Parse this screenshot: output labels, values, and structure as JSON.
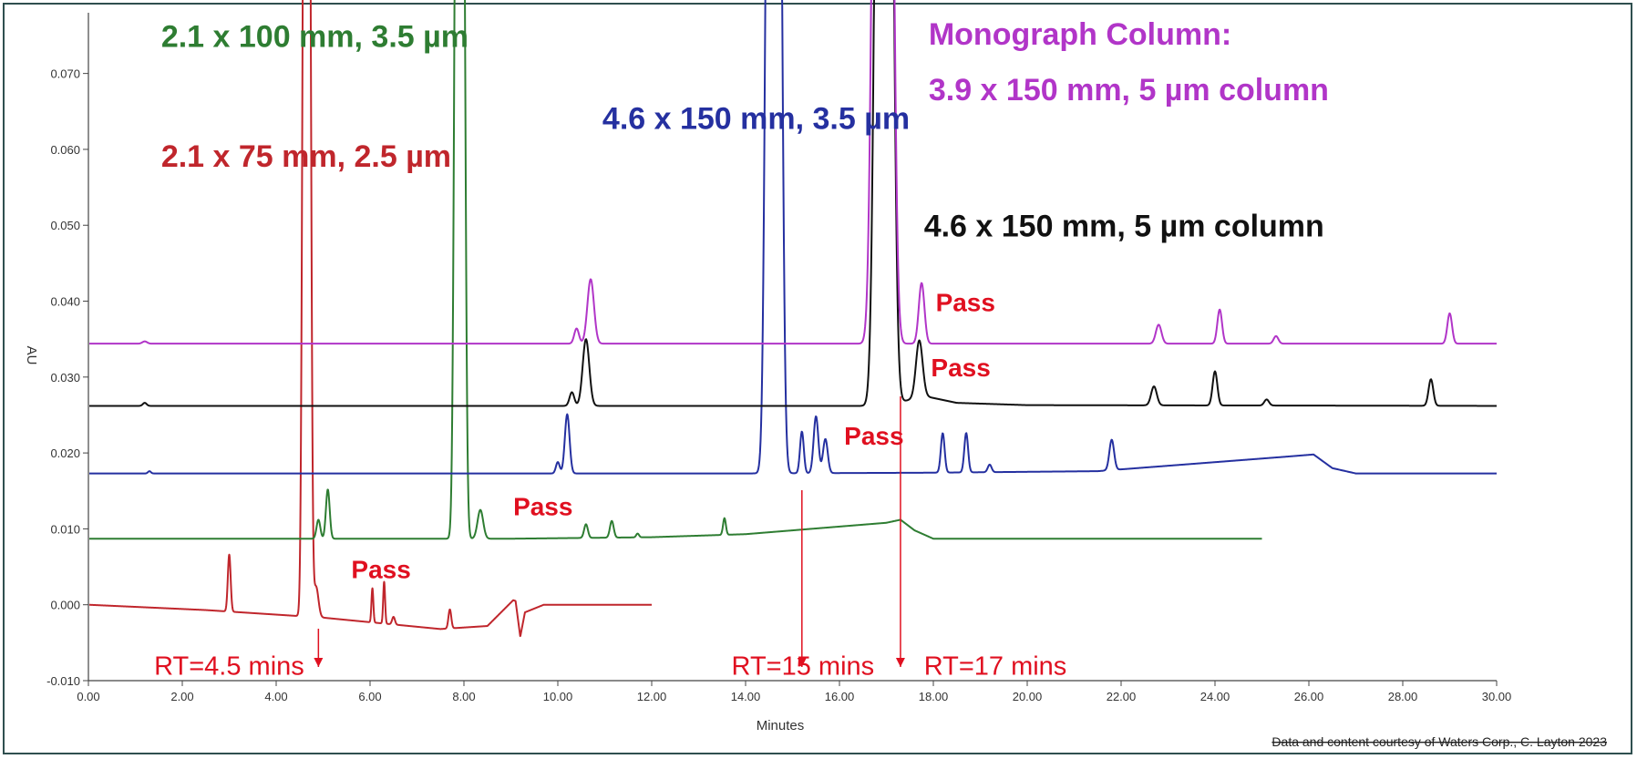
{
  "chart_data": {
    "type": "line",
    "title": "",
    "xlabel": "Minutes",
    "ylabel": "AU",
    "xlim": [
      0,
      30
    ],
    "ylim": [
      -0.01,
      0.078
    ],
    "x_ticks": [
      "0.00",
      "2.00",
      "4.00",
      "6.00",
      "8.00",
      "10.00",
      "12.00",
      "14.00",
      "16.00",
      "18.00",
      "20.00",
      "22.00",
      "24.00",
      "26.00",
      "28.00",
      "30.00"
    ],
    "y_ticks": [
      {
        "value": -0.01,
        "label": "-0.010"
      },
      {
        "value": 0.0,
        "label": "0.000"
      },
      {
        "value": 0.01,
        "label": "0.010"
      },
      {
        "value": 0.02,
        "label": "0.020"
      },
      {
        "value": 0.03,
        "label": "0.030"
      },
      {
        "value": 0.04,
        "label": "0.040"
      },
      {
        "value": 0.05,
        "label": "0.050"
      },
      {
        "value": 0.06,
        "label": "0.060"
      },
      {
        "value": 0.07,
        "label": "0.070"
      }
    ],
    "grid": false,
    "series": [
      {
        "name": "2.1 x 75 mm, 2.5 µm",
        "color": "#c0262c",
        "baseline": [
          [
            0.0,
            0.0
          ],
          [
            2.5,
            -0.0007
          ],
          [
            5.0,
            -0.0017
          ],
          [
            7.5,
            -0.0032
          ],
          [
            8.5,
            -0.0028
          ],
          [
            9.05,
            0.0006
          ],
          [
            9.1,
            0.0005
          ],
          [
            9.2,
            -0.0042
          ],
          [
            9.3,
            -0.001
          ],
          [
            9.7,
            0.0
          ],
          [
            12.0,
            0.0
          ]
        ],
        "peaks": [
          [
            3.0,
            0.0075,
            0.03
          ],
          [
            4.6,
            0.12,
            0.04
          ],
          [
            4.7,
            0.12,
            0.04
          ],
          [
            4.85,
            0.004,
            0.05
          ],
          [
            6.05,
            0.0045,
            0.02
          ],
          [
            6.3,
            0.0055,
            0.02
          ],
          [
            6.5,
            0.001,
            0.03
          ],
          [
            7.7,
            0.0025,
            0.03
          ]
        ],
        "text_label": {
          "text": "2.1 x 75 mm, 2.5 µm",
          "x": 1.55,
          "y": 0.0577
        },
        "pass_label": {
          "text": "Pass",
          "x": 5.6,
          "y": 0.0035
        },
        "rt_label": {
          "text": "RT=4.5 mins",
          "x": 1.4,
          "y": -0.0092
        },
        "rt_marker": 4.9
      },
      {
        "name": "2.1 x 100  mm, 3.5 µm",
        "color": "#2e7d32",
        "baseline": [
          [
            0.0,
            0.0087
          ],
          [
            7.5,
            0.0087
          ],
          [
            9.0,
            0.0087
          ],
          [
            12.0,
            0.0089
          ],
          [
            14.0,
            0.0093
          ],
          [
            17.0,
            0.0108
          ],
          [
            17.3,
            0.0112
          ],
          [
            17.6,
            0.0098
          ],
          [
            18.0,
            0.0087
          ],
          [
            25.0,
            0.0087
          ]
        ],
        "peaks": [
          [
            4.9,
            0.0025,
            0.04
          ],
          [
            5.1,
            0.0065,
            0.04
          ],
          [
            7.85,
            0.12,
            0.05
          ],
          [
            7.97,
            0.12,
            0.05
          ],
          [
            8.35,
            0.0038,
            0.06
          ],
          [
            10.6,
            0.0018,
            0.04
          ],
          [
            11.15,
            0.0022,
            0.04
          ],
          [
            11.7,
            0.0005,
            0.03
          ],
          [
            13.55,
            0.0022,
            0.03
          ]
        ],
        "text_label": {
          "text": "2.1 x 100  mm, 3.5 µm",
          "x": 1.55,
          "y": 0.0735
        },
        "pass_label": {
          "text": "Pass",
          "x": 9.05,
          "y": 0.0118
        },
        "rt_label": null,
        "rt_marker": null
      },
      {
        "name": "4.6 x 150 mm, 3.5 µm",
        "color": "#2530a0",
        "baseline": [
          [
            0.0,
            0.0173
          ],
          [
            10.0,
            0.0173
          ],
          [
            14.0,
            0.0173
          ],
          [
            18.0,
            0.0174
          ],
          [
            21.5,
            0.0176
          ],
          [
            25.5,
            0.0195
          ],
          [
            26.1,
            0.0198
          ],
          [
            26.5,
            0.018
          ],
          [
            27.0,
            0.0173
          ],
          [
            30.0,
            0.0173
          ]
        ],
        "peaks": [
          [
            1.3,
            0.0003,
            0.03
          ],
          [
            10.0,
            0.0015,
            0.04
          ],
          [
            10.2,
            0.0078,
            0.05
          ],
          [
            14.5,
            0.12,
            0.07
          ],
          [
            14.7,
            0.12,
            0.07
          ],
          [
            15.2,
            0.0055,
            0.04
          ],
          [
            15.5,
            0.0075,
            0.05
          ],
          [
            15.7,
            0.0045,
            0.05
          ],
          [
            18.2,
            0.0052,
            0.04
          ],
          [
            18.7,
            0.0052,
            0.04
          ],
          [
            19.2,
            0.001,
            0.04
          ],
          [
            21.8,
            0.004,
            0.05
          ]
        ],
        "text_label": {
          "text": "4.6 x 150 mm, 3.5 µm",
          "x": 10.95,
          "y": 0.0627
        },
        "pass_label": {
          "text": "Pass",
          "x": 16.1,
          "y": 0.0211
        },
        "rt_label": {
          "text": "RT=15 mins",
          "x": 13.7,
          "y": -0.0092
        },
        "rt_marker": 15.2
      },
      {
        "name": "4.6 x 150 mm, 5 µm column",
        "color": "#111111",
        "baseline": [
          [
            0.0,
            0.0262
          ],
          [
            16.0,
            0.0262
          ],
          [
            17.0,
            0.0262
          ],
          [
            17.8,
            0.0275
          ],
          [
            18.5,
            0.0266
          ],
          [
            20.0,
            0.0263
          ],
          [
            30.0,
            0.0262
          ]
        ],
        "peaks": [
          [
            1.2,
            0.0004,
            0.04
          ],
          [
            10.3,
            0.0018,
            0.05
          ],
          [
            10.6,
            0.0088,
            0.07
          ],
          [
            16.85,
            0.12,
            0.09
          ],
          [
            17.05,
            0.12,
            0.09
          ],
          [
            17.7,
            0.0075,
            0.07
          ],
          [
            22.7,
            0.0025,
            0.06
          ],
          [
            24.0,
            0.0045,
            0.05
          ],
          [
            25.1,
            0.0008,
            0.05
          ],
          [
            28.6,
            0.0035,
            0.05
          ]
        ],
        "text_label": {
          "text": "4.6 x 150 mm, 5 µm column",
          "x": 17.8,
          "y": 0.0485
        },
        "pass_label": {
          "text": "Pass",
          "x": 17.95,
          "y": 0.0301
        },
        "rt_label": {
          "text": "RT=17 mins",
          "x": 17.8,
          "y": -0.0092
        },
        "rt_marker": 17.3
      },
      {
        "name": "Monograph Column: 3.9 x 150 mm, 5 µm column",
        "color": "#b135c8",
        "baseline": [
          [
            0.0,
            0.0344
          ],
          [
            30.0,
            0.0344
          ]
        ],
        "peaks": [
          [
            1.2,
            0.0003,
            0.05
          ],
          [
            10.4,
            0.002,
            0.05
          ],
          [
            10.7,
            0.0085,
            0.07
          ],
          [
            16.8,
            0.12,
            0.09
          ],
          [
            17.05,
            0.12,
            0.09
          ],
          [
            17.75,
            0.008,
            0.06
          ],
          [
            22.8,
            0.0025,
            0.06
          ],
          [
            24.1,
            0.0045,
            0.05
          ],
          [
            25.3,
            0.001,
            0.05
          ],
          [
            29.0,
            0.004,
            0.05
          ]
        ],
        "text_label": {
          "text": "Monograph Column:",
          "text2": "3.9 x 150 mm, 5 µm column",
          "x": 17.9,
          "y": 0.0738,
          "y2": 0.0665
        },
        "pass_label": {
          "text": "Pass",
          "x": 18.05,
          "y": 0.0387
        },
        "rt_label": null,
        "rt_marker": null
      }
    ],
    "credit": "Data and content courtesy of Waters Corp., C. Layton 2023"
  }
}
